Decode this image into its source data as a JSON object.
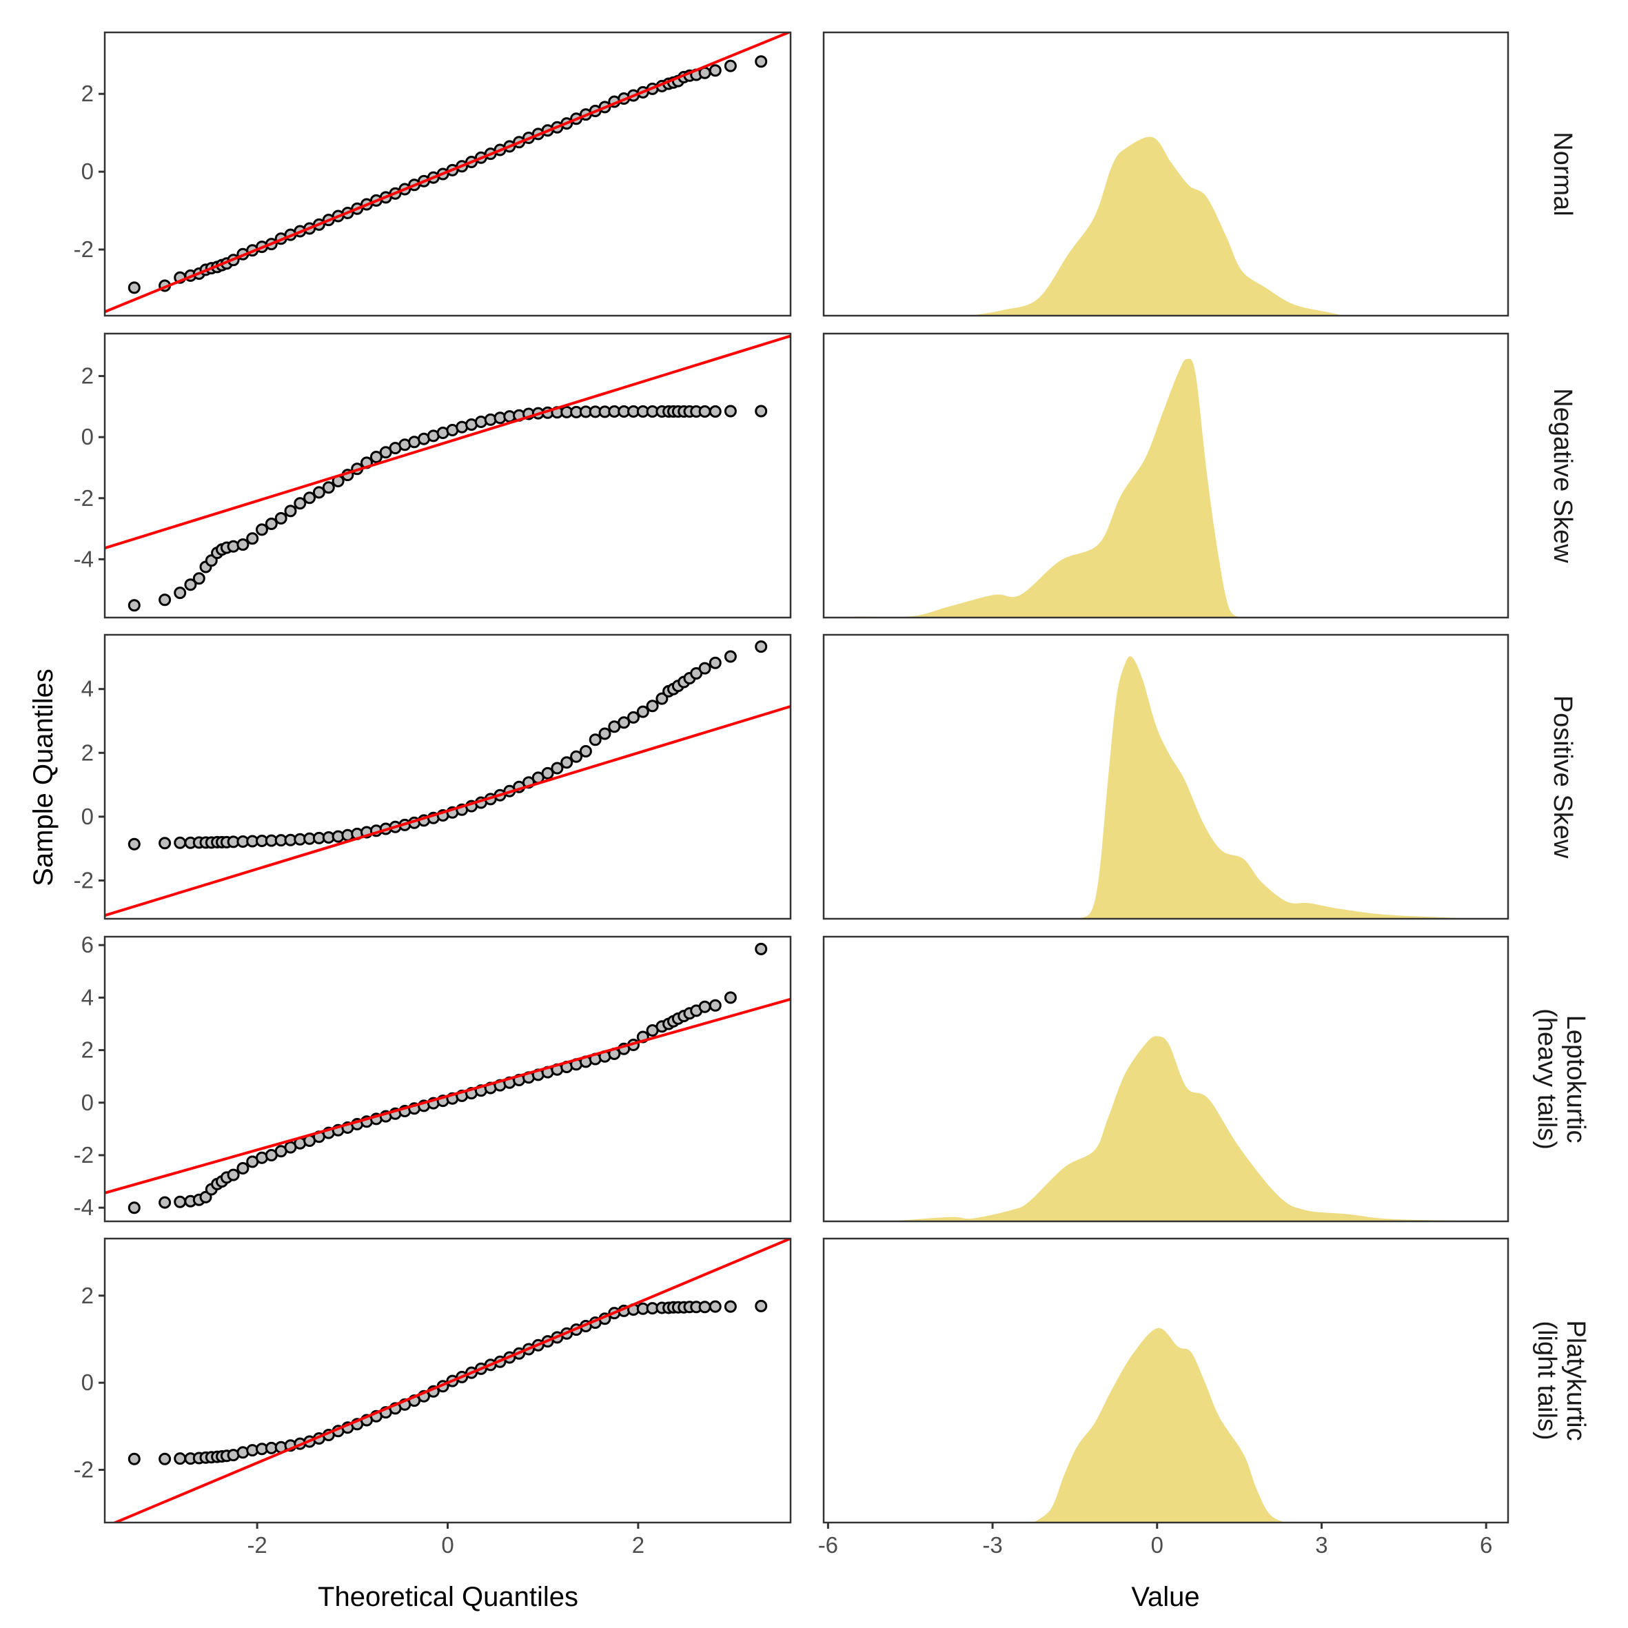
{
  "figure": {
    "x_axis_title_left": "Theoretical Quantiles",
    "x_axis_title_right": "Value",
    "y_axis_title": "Sample Quantiles"
  },
  "colors": {
    "reference_line": "#ff0000",
    "point_fill": "#bebebe",
    "point_stroke": "#000000",
    "density_fill": "#eedc82",
    "panel_border": "#333333"
  },
  "chart_data": [
    {
      "type": "scatter",
      "subtype": "qq-plot",
      "column": "left",
      "xlabel": "Theoretical Quantiles",
      "ylabel": "Sample Quantiles",
      "xlim": [
        -3.6,
        3.6
      ],
      "x_ticks": [
        -2,
        0,
        2
      ],
      "x_tick_labels": [
        "-2",
        "0",
        "2"
      ],
      "grid": false,
      "theoretical": [
        -3.29,
        -2.97,
        -2.81,
        -2.7,
        -2.61,
        -2.54,
        -2.48,
        -2.42,
        -2.37,
        -2.32,
        -2.25,
        -2.15,
        -2.05,
        -1.95,
        -1.85,
        -1.75,
        -1.65,
        -1.55,
        -1.45,
        -1.35,
        -1.25,
        -1.15,
        -1.05,
        -0.95,
        -0.85,
        -0.75,
        -0.65,
        -0.55,
        -0.45,
        -0.35,
        -0.25,
        -0.15,
        -0.05,
        0.05,
        0.15,
        0.25,
        0.35,
        0.45,
        0.55,
        0.65,
        0.75,
        0.85,
        0.95,
        1.05,
        1.15,
        1.25,
        1.35,
        1.45,
        1.55,
        1.65,
        1.75,
        1.85,
        1.95,
        2.05,
        2.15,
        2.25,
        2.32,
        2.37,
        2.42,
        2.48,
        2.54,
        2.61,
        2.7,
        2.81,
        2.97,
        3.29
      ],
      "panels": [
        {
          "name": "Normal",
          "ylim": [
            -3.7,
            3.58
          ],
          "y_ticks": [
            -2,
            0,
            2
          ],
          "y_tick_labels": [
            "-2",
            "0",
            "2"
          ],
          "reference_line": {
            "slope": 1.0,
            "intercept": 0.0
          },
          "sample": [
            -2.98,
            -2.93,
            -2.72,
            -2.67,
            -2.62,
            -2.52,
            -2.48,
            -2.45,
            -2.4,
            -2.36,
            -2.27,
            -2.12,
            -2.02,
            -1.93,
            -1.86,
            -1.72,
            -1.62,
            -1.53,
            -1.46,
            -1.36,
            -1.24,
            -1.14,
            -1.06,
            -0.95,
            -0.84,
            -0.74,
            -0.66,
            -0.56,
            -0.45,
            -0.34,
            -0.24,
            -0.15,
            -0.06,
            0.04,
            0.14,
            0.25,
            0.36,
            0.46,
            0.56,
            0.65,
            0.76,
            0.87,
            0.97,
            1.06,
            1.14,
            1.24,
            1.36,
            1.47,
            1.56,
            1.66,
            1.8,
            1.88,
            1.96,
            2.04,
            2.13,
            2.2,
            2.26,
            2.29,
            2.33,
            2.43,
            2.47,
            2.49,
            2.54,
            2.6,
            2.72,
            2.83
          ]
        },
        {
          "name": "Negative Skew",
          "ylim": [
            -5.91,
            3.39
          ],
          "y_ticks": [
            -4,
            -2,
            0,
            2
          ],
          "y_tick_labels": [
            "-4",
            "-2",
            "0",
            "2"
          ],
          "reference_line": {
            "slope": 0.965,
            "intercept": -0.16
          },
          "sample": [
            -5.51,
            -5.33,
            -5.1,
            -4.83,
            -4.63,
            -4.25,
            -4.04,
            -3.79,
            -3.68,
            -3.62,
            -3.58,
            -3.52,
            -3.32,
            -3.03,
            -2.84,
            -2.66,
            -2.42,
            -2.17,
            -1.99,
            -1.81,
            -1.65,
            -1.44,
            -1.24,
            -1.04,
            -0.84,
            -0.65,
            -0.5,
            -0.36,
            -0.25,
            -0.16,
            -0.06,
            0.04,
            0.14,
            0.23,
            0.33,
            0.41,
            0.5,
            0.57,
            0.63,
            0.68,
            0.71,
            0.76,
            0.78,
            0.8,
            0.81,
            0.82,
            0.82,
            0.83,
            0.83,
            0.83,
            0.84,
            0.84,
            0.84,
            0.84,
            0.84,
            0.84,
            0.84,
            0.84,
            0.84,
            0.84,
            0.84,
            0.84,
            0.84,
            0.84,
            0.85,
            0.85
          ]
        },
        {
          "name": "Positive Skew",
          "ylim": [
            -3.2,
            5.7
          ],
          "y_ticks": [
            -2,
            0,
            2,
            4
          ],
          "y_tick_labels": [
            "-2",
            "0",
            "2",
            "4"
          ],
          "reference_line": {
            "slope": 0.91,
            "intercept": 0.18
          },
          "sample": [
            -0.86,
            -0.83,
            -0.82,
            -0.82,
            -0.81,
            -0.81,
            -0.81,
            -0.8,
            -0.8,
            -0.8,
            -0.79,
            -0.78,
            -0.77,
            -0.76,
            -0.75,
            -0.74,
            -0.73,
            -0.71,
            -0.69,
            -0.67,
            -0.65,
            -0.62,
            -0.58,
            -0.54,
            -0.49,
            -0.44,
            -0.38,
            -0.32,
            -0.26,
            -0.19,
            -0.12,
            -0.04,
            0.04,
            0.13,
            0.22,
            0.33,
            0.44,
            0.55,
            0.67,
            0.8,
            0.93,
            1.07,
            1.22,
            1.36,
            1.52,
            1.7,
            1.88,
            2.05,
            2.41,
            2.6,
            2.82,
            2.95,
            3.11,
            3.29,
            3.47,
            3.7,
            3.93,
            4.0,
            4.1,
            4.22,
            4.34,
            4.49,
            4.65,
            4.82,
            5.02,
            5.33
          ]
        },
        {
          "name": "Leptokurtic (heavy tails)",
          "ylim": [
            -4.52,
            6.32
          ],
          "y_ticks": [
            -4,
            -2,
            0,
            2,
            4,
            6
          ],
          "y_tick_labels": [
            "-4",
            "-2",
            "0",
            "2",
            "4",
            "6"
          ],
          "reference_line": {
            "slope": 1.025,
            "intercept": 0.25
          },
          "sample": [
            -4.0,
            -3.8,
            -3.78,
            -3.75,
            -3.7,
            -3.6,
            -3.3,
            -3.1,
            -3.0,
            -2.85,
            -2.75,
            -2.5,
            -2.25,
            -2.1,
            -2.0,
            -1.85,
            -1.7,
            -1.55,
            -1.45,
            -1.3,
            -1.15,
            -1.05,
            -0.95,
            -0.82,
            -0.72,
            -0.62,
            -0.52,
            -0.42,
            -0.32,
            -0.22,
            -0.12,
            -0.02,
            0.07,
            0.16,
            0.26,
            0.36,
            0.46,
            0.56,
            0.66,
            0.76,
            0.86,
            0.96,
            1.06,
            1.16,
            1.26,
            1.36,
            1.46,
            1.56,
            1.66,
            1.76,
            1.86,
            2.05,
            2.2,
            2.5,
            2.75,
            2.9,
            3.0,
            3.1,
            3.2,
            3.3,
            3.4,
            3.5,
            3.65,
            3.7,
            4.0,
            5.85
          ]
        },
        {
          "name": "Platykurtic (light tails)",
          "ylim": [
            -3.21,
            3.31
          ],
          "y_ticks": [
            -2,
            0,
            2
          ],
          "y_tick_labels": [
            "-2",
            "0",
            "2"
          ],
          "reference_line": {
            "slope": 0.92,
            "intercept": 0.0
          },
          "sample": [
            -1.75,
            -1.75,
            -1.74,
            -1.74,
            -1.73,
            -1.72,
            -1.71,
            -1.7,
            -1.69,
            -1.68,
            -1.66,
            -1.6,
            -1.55,
            -1.52,
            -1.5,
            -1.48,
            -1.44,
            -1.4,
            -1.35,
            -1.28,
            -1.2,
            -1.11,
            -1.03,
            -0.95,
            -0.86,
            -0.77,
            -0.68,
            -0.59,
            -0.5,
            -0.41,
            -0.31,
            -0.2,
            -0.08,
            0.04,
            0.13,
            0.23,
            0.32,
            0.41,
            0.48,
            0.58,
            0.67,
            0.77,
            0.86,
            0.95,
            1.04,
            1.13,
            1.22,
            1.3,
            1.38,
            1.47,
            1.6,
            1.65,
            1.68,
            1.7,
            1.71,
            1.72,
            1.72,
            1.73,
            1.73,
            1.73,
            1.74,
            1.74,
            1.74,
            1.75,
            1.75,
            1.76
          ]
        }
      ]
    },
    {
      "type": "area",
      "subtype": "density",
      "column": "right",
      "xlabel": "Value",
      "ylabel": "",
      "xlim": [
        -6.08,
        6.4
      ],
      "x_ticks": [
        -6,
        -3,
        0,
        3,
        6
      ],
      "x_tick_labels": [
        "-6",
        "-3",
        "0",
        "3",
        "6"
      ],
      "y_ticks_shown": false,
      "grid": false,
      "panels": [
        {
          "name": "Normal",
          "ylim": [
            0,
            1
          ],
          "x": [
            -3.41,
            -2.8,
            -2.17,
            -1.61,
            -1.14,
            -0.82,
            -0.58,
            -0.08,
            0.26,
            0.58,
            0.9,
            1.26,
            1.54,
            1.97,
            2.49,
            3.17,
            3.4
          ],
          "density": [
            0,
            0.02,
            0.06,
            0.22,
            0.35,
            0.53,
            0.59,
            0.63,
            0.54,
            0.46,
            0.42,
            0.28,
            0.16,
            0.1,
            0.04,
            0.01,
            0
          ]
        },
        {
          "name": "Negative Skew",
          "ylim": [
            0,
            1
          ],
          "x": [
            -5.52,
            -4.49,
            -3.77,
            -2.97,
            -2.49,
            -1.77,
            -1.06,
            -0.66,
            -0.22,
            0.1,
            0.38,
            0.54,
            0.7,
            0.9,
            1.1,
            1.3,
            1.5
          ],
          "density": [
            0.004,
            0.004,
            0.04,
            0.08,
            0.08,
            0.2,
            0.26,
            0.43,
            0.56,
            0.72,
            0.86,
            0.91,
            0.86,
            0.52,
            0.24,
            0.04,
            0
          ]
        },
        {
          "name": "Positive Skew",
          "ylim": [
            0,
            1
          ],
          "x": [
            -1.5,
            -1.22,
            -1.06,
            -0.9,
            -0.74,
            -0.58,
            -0.45,
            -0.26,
            -0.02,
            0.22,
            0.5,
            0.86,
            1.18,
            1.58,
            1.9,
            2.37,
            2.77,
            3.33,
            4.13,
            5.08,
            5.88
          ],
          "density": [
            0,
            0.02,
            0.15,
            0.48,
            0.78,
            0.9,
            0.92,
            0.84,
            0.68,
            0.58,
            0.49,
            0.33,
            0.24,
            0.21,
            0.13,
            0.06,
            0.055,
            0.035,
            0.015,
            0.006,
            0
          ]
        },
        {
          "name": "Leptokurtic (heavy tails)",
          "ylim": [
            0,
            1
          ],
          "x": [
            -4.88,
            -3.77,
            -3.37,
            -2.65,
            -2.33,
            -1.69,
            -1.14,
            -0.9,
            -0.58,
            -0.18,
            0.02,
            0.22,
            0.54,
            0.94,
            1.5,
            2.21,
            2.69,
            3.49,
            4.29,
            5.88
          ],
          "density": [
            0,
            0.015,
            0.01,
            0.04,
            0.07,
            0.19,
            0.25,
            0.36,
            0.52,
            0.63,
            0.65,
            0.62,
            0.47,
            0.43,
            0.26,
            0.09,
            0.04,
            0.025,
            0.008,
            0.002
          ]
        },
        {
          "name": "Platykurtic (light tails)",
          "ylim": [
            0,
            1
          ],
          "x": [
            -2.25,
            -1.93,
            -1.69,
            -1.45,
            -1.14,
            -0.82,
            -0.42,
            0.02,
            0.38,
            0.62,
            0.86,
            1.14,
            1.58,
            1.81,
            2.05,
            2.33
          ],
          "density": [
            0,
            0.05,
            0.17,
            0.27,
            0.35,
            0.47,
            0.6,
            0.685,
            0.62,
            0.6,
            0.5,
            0.37,
            0.24,
            0.12,
            0.03,
            0
          ]
        }
      ]
    }
  ]
}
